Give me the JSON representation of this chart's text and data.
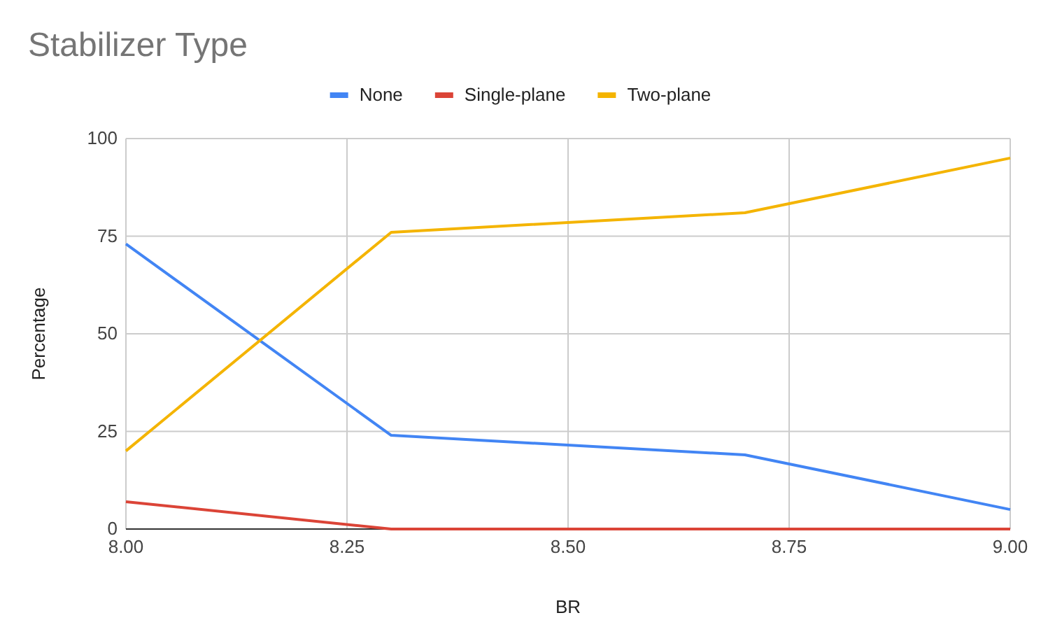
{
  "chart_data": {
    "type": "line",
    "title": "Stabilizer Type",
    "xlabel": "BR",
    "ylabel": "Percentage",
    "x": [
      8.0,
      8.3,
      8.7,
      9.0
    ],
    "series": [
      {
        "name": "None",
        "color": "#4285f4",
        "values": [
          73,
          24,
          19,
          5
        ]
      },
      {
        "name": "Single-plane",
        "color": "#db4437",
        "values": [
          7,
          0,
          0,
          0
        ]
      },
      {
        "name": "Two-plane",
        "color": "#f4b400",
        "values": [
          20,
          76,
          81,
          95
        ]
      }
    ],
    "xlim": [
      8.0,
      9.0
    ],
    "xticks": [
      {
        "value": 8.0,
        "label": "8.00"
      },
      {
        "value": 8.25,
        "label": "8.25"
      },
      {
        "value": 8.5,
        "label": "8.50"
      },
      {
        "value": 8.75,
        "label": "8.75"
      },
      {
        "value": 9.0,
        "label": "9.00"
      }
    ],
    "ylim": [
      0,
      100
    ],
    "yticks": [
      0,
      25,
      50,
      75,
      100
    ],
    "grid": true,
    "legend": "top",
    "marker": "none",
    "line_style": "solid"
  }
}
